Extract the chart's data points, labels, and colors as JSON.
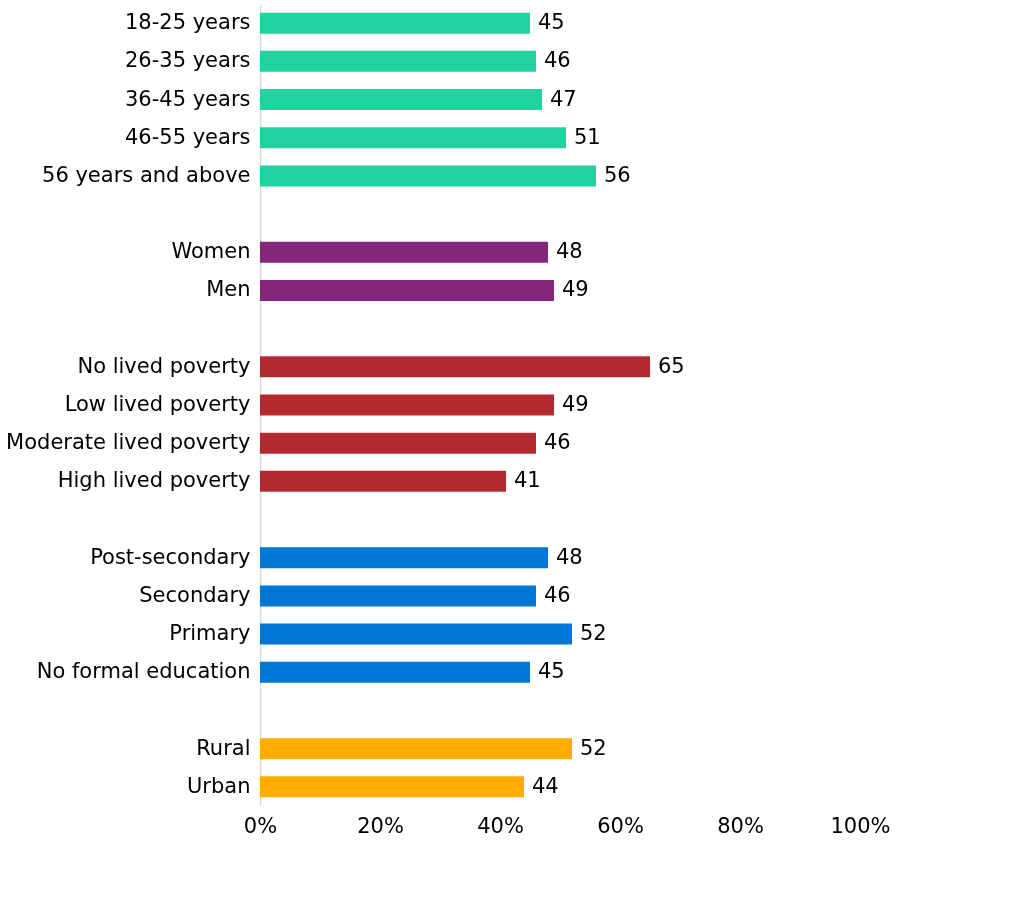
{
  "chart_data": {
    "type": "bar",
    "orientation": "horizontal",
    "data_labels": true,
    "grid": false,
    "categories": [
      "18-25 years",
      "26-35 years",
      "36-45 years",
      "46-55 years",
      "56 years and above",
      null,
      "Women",
      "Men",
      null,
      "No lived poverty",
      "Low lived poverty",
      "Moderate lived poverty",
      "High lived poverty",
      null,
      "Post-secondary",
      "Secondary",
      "Primary",
      "No formal education",
      null,
      "Rural",
      "Urban"
    ],
    "values": [
      45,
      46,
      47,
      51,
      56,
      null,
      48,
      49,
      null,
      65,
      49,
      46,
      41,
      null,
      48,
      46,
      52,
      45,
      null,
      52,
      44
    ],
    "colors": [
      "#22d3a0",
      "#22d3a0",
      "#22d3a0",
      "#22d3a0",
      "#22d3a0",
      null,
      "#84267a",
      "#84267a",
      null,
      "#b22a2f",
      "#b22a2f",
      "#b22a2f",
      "#b22a2f",
      null,
      "#0077d6",
      "#0077d6",
      "#0077d6",
      "#0077d6",
      null,
      "#ffab00",
      "#ffab00"
    ],
    "xlim": [
      0,
      100
    ],
    "xticks": [
      {
        "value": 0,
        "label": "0%"
      },
      {
        "value": 20,
        "label": "20%"
      },
      {
        "value": 40,
        "label": "40%"
      },
      {
        "value": 60,
        "label": "60%"
      },
      {
        "value": 80,
        "label": "80%"
      },
      {
        "value": 100,
        "label": "100%"
      }
    ]
  }
}
